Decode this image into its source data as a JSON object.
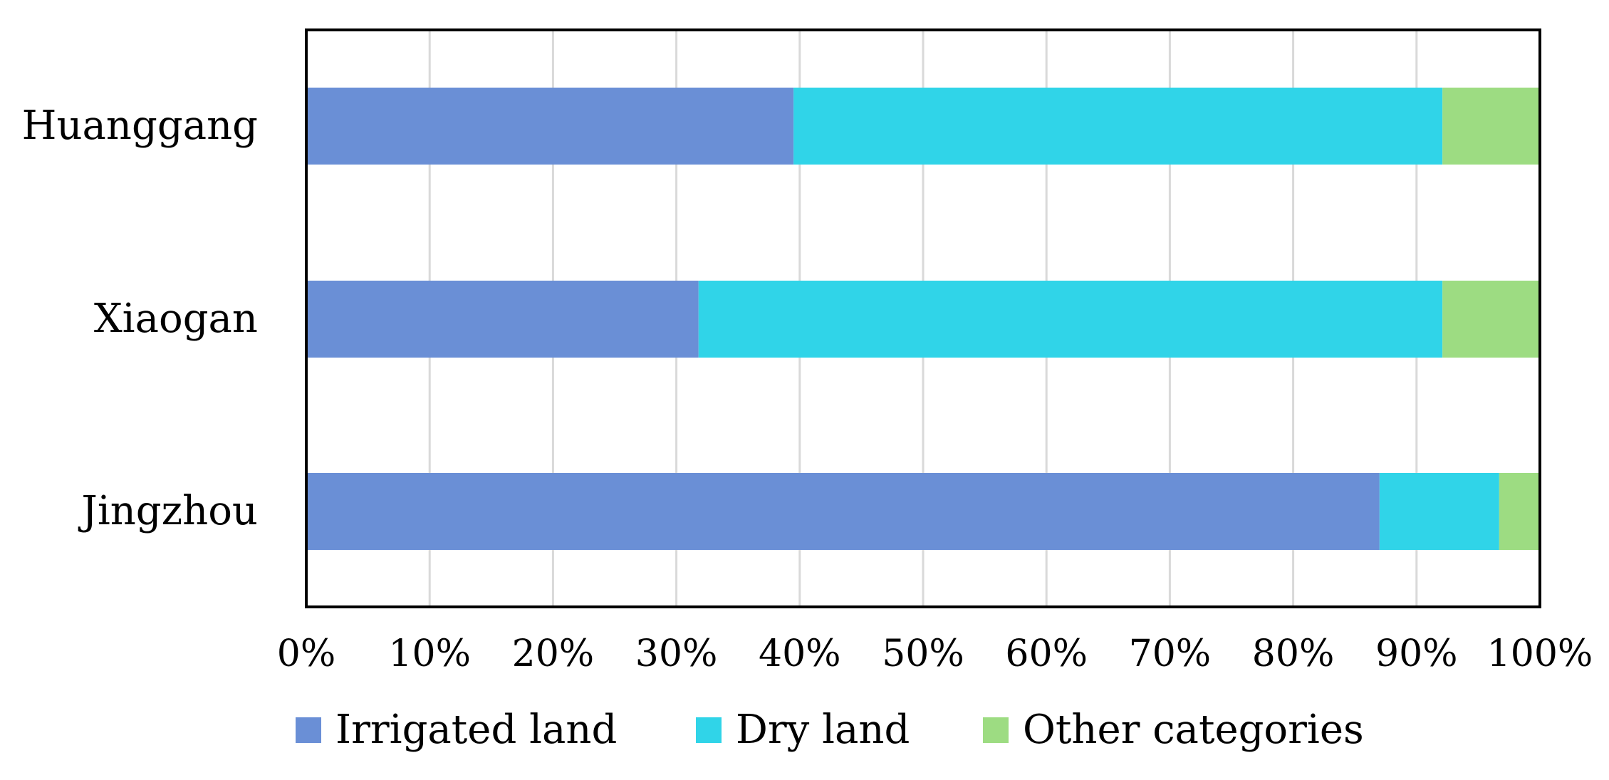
{
  "chart_data": {
    "type": "bar",
    "orientation": "horizontal",
    "stacked": "percent",
    "categories": [
      "Huanggang",
      "Xiaogan",
      "Jingzhou"
    ],
    "series": [
      {
        "name": "Irrigated land",
        "color": "#6A8FD6",
        "values": [
          39.5,
          31.8,
          87.0
        ]
      },
      {
        "name": "Dry land",
        "color": "#30D4E8",
        "values": [
          52.6,
          60.3,
          9.7
        ]
      },
      {
        "name": "Other categories",
        "color": "#9DDC82",
        "values": [
          7.9,
          7.9,
          3.3
        ]
      }
    ],
    "x_ticks": [
      "0%",
      "10%",
      "20%",
      "30%",
      "40%",
      "50%",
      "60%",
      "70%",
      "80%",
      "90%",
      "100%"
    ],
    "xlim": [
      0,
      100
    ],
    "grid": "vertical",
    "legend_position": "bottom"
  }
}
